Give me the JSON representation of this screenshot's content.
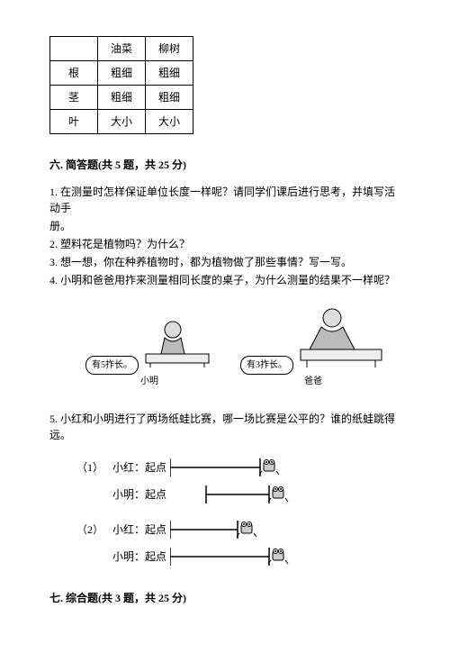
{
  "table": {
    "headers": [
      "",
      "油菜",
      "柳树"
    ],
    "rows": [
      [
        "根",
        "粗细",
        "粗细"
      ],
      [
        "茎",
        "粗细",
        "粗细"
      ],
      [
        "叶",
        "大小",
        "大小"
      ]
    ]
  },
  "section6": {
    "title": "六. 简答题(共 5 题，共 25 分)",
    "q1a": "1. 在测量时怎样保证单位长度一样呢？请同学们课后进行思考，并填写活动手",
    "q1b": "册。",
    "q2": "2. 塑料花是植物吗？为什么？",
    "q3": "3. 想一想，你在种养植物时，都为植物做了那些事情？写一写。",
    "q4": "4. 小明和爸爸用拃来测量相同长度的桌子，为什么测量的结果不一样呢？",
    "q5": "5. 小红和小明进行了两场纸蛙比赛，哪一场比赛是公平的？谁的纸蛙跳得远。"
  },
  "figure": {
    "bubble_left": "有5拃长。",
    "bubble_right": "有3拃长。",
    "label_left": "小明",
    "label_right": "爸爸"
  },
  "races": {
    "g1": "（1）",
    "g2": "（2）",
    "hong": "小红：起点",
    "ming": "小明：起点"
  },
  "race_layout": {
    "g1": {
      "hong": {
        "start": 0,
        "len": 100
      },
      "ming": {
        "start": 40,
        "len": 70
      }
    },
    "g2": {
      "hong": {
        "start": 0,
        "len": 75
      },
      "ming": {
        "start": 0,
        "len": 110
      }
    }
  },
  "section7": {
    "title": "七. 综合题(共 3 题，共 25 分)"
  },
  "colors": {
    "line": "#000000"
  }
}
